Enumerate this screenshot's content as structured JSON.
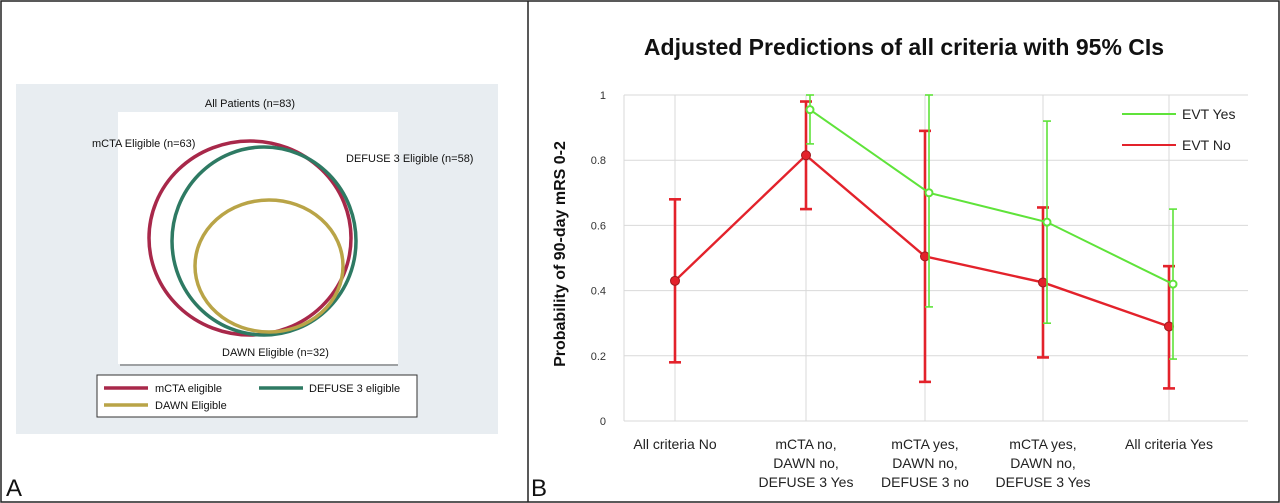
{
  "panel_a": {
    "label": "A",
    "title": "All Patients (n=83)",
    "circle_labels": {
      "mcta": "mCTA Eligible (n=63)",
      "defuse": "DEFUSE 3 Eligible (n=58)",
      "dawn": "DAWN Eligible (n=32)"
    },
    "legend": [
      {
        "label": "mCTA eligible",
        "color": "#a8284a"
      },
      {
        "label": "DEFUSE 3 eligible",
        "color": "#2e7a63"
      },
      {
        "label": "DAWN Eligible",
        "color": "#b9a447"
      }
    ],
    "colors": {
      "plot_bg": "#e8edf1",
      "mcta": "#a8284a",
      "defuse": "#2e7a63",
      "dawn": "#b9a447"
    }
  },
  "panel_b": {
    "label": "B",
    "colors": {
      "evt_yes": "#5fe33a",
      "evt_no": "#e3222b",
      "grid": "#d9d9d9"
    }
  },
  "chart_data": {
    "type": "line",
    "title": "Adjusted Predictions of all criteria with 95% CIs",
    "ylabel": "Probability of 90-day mRS 0-2",
    "xlabel": "",
    "ylim": [
      0,
      1
    ],
    "yticks": [
      "0",
      "0.2",
      "0.4",
      "0.6",
      "0.8",
      "1"
    ],
    "categories": [
      [
        "All criteria No"
      ],
      [
        "mCTA no,",
        "DAWN no,",
        "DEFUSE 3 Yes"
      ],
      [
        "mCTA yes,",
        "DAWN no,",
        "DEFUSE 3 no"
      ],
      [
        "mCTA yes,",
        "DAWN no,",
        "DEFUSE 3 Yes"
      ],
      [
        "All criteria Yes"
      ]
    ],
    "grid": true,
    "legend_position": "top-right",
    "series": [
      {
        "name": "EVT Yes",
        "color": "#5fe33a",
        "values": [
          null,
          0.955,
          0.7,
          0.61,
          0.42
        ],
        "ci_low": [
          null,
          0.85,
          0.35,
          0.3,
          0.19
        ],
        "ci_high": [
          null,
          1.0,
          1.0,
          0.92,
          0.65
        ]
      },
      {
        "name": "EVT No",
        "color": "#e3222b",
        "values": [
          0.43,
          0.815,
          0.505,
          0.425,
          0.29
        ],
        "ci_low": [
          0.18,
          0.65,
          0.12,
          0.195,
          0.1
        ],
        "ci_high": [
          0.68,
          0.98,
          0.89,
          0.655,
          0.475
        ]
      }
    ]
  }
}
